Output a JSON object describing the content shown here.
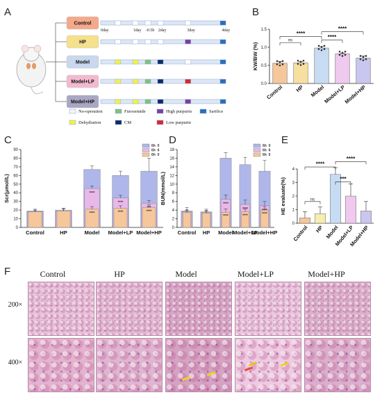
{
  "panels": {
    "a": "A",
    "b": "B",
    "c": "C",
    "d": "D",
    "e": "E",
    "f": "F"
  },
  "colors": {
    "control": "#f3a98a",
    "hp": "#f5e08c",
    "model": "#c9d7ef",
    "lp": "#f2b9cf",
    "mhp": "#a9a7c4",
    "noop": "#f0f4fb",
    "furosemide": "#7fc27d",
    "highpurpurin": "#7a3fa0",
    "sarifice": "#2a6fba",
    "dehydration": "#f2f24a",
    "cm": "#0f2a6b",
    "lowpurpurin": "#d8262c",
    "barB": "#f6c79b",
    "barC1": "#aeb6ea",
    "barC2": "#e8b8e8",
    "barC3": "#f6c79b",
    "barE": [
      "#f6c79b",
      "#f6edb0",
      "#c7dcf3",
      "#f0c9ee",
      "#c9c6ef"
    ]
  },
  "schema": {
    "groups": [
      "Control",
      "HP",
      "Model",
      "Model+LP",
      "Model+HP"
    ],
    "days": [
      "0day",
      "1day",
      "-0.5h",
      "2day",
      "3day",
      "4day"
    ],
    "legend": [
      {
        "name": "No-operation",
        "color_key": "noop"
      },
      {
        "name": "Furosemide",
        "color_key": "furosemide"
      },
      {
        "name": "High purpurin",
        "color_key": "highpurpurin"
      },
      {
        "name": "Sarifice",
        "color_key": "sarifice"
      },
      {
        "name": "Dehydration",
        "color_key": "dehydration"
      },
      {
        "name": "CM",
        "color_key": "cm"
      },
      {
        "name": "Low purpurin",
        "color_key": "lowpurpurin"
      }
    ],
    "tracks": [
      [
        "noop",
        "noop",
        "noop",
        "noop",
        "noop",
        "sarifice"
      ],
      [
        "noop",
        "noop",
        "noop",
        "noop",
        "highpurpurin",
        "sarifice"
      ],
      [
        "dehydration",
        "dehydration",
        "furosemide",
        "cm",
        "noop",
        "sarifice"
      ],
      [
        "dehydration",
        "dehydration",
        "furosemide",
        "cm",
        "lowpurpurin",
        "sarifice"
      ],
      [
        "dehydration",
        "dehydration",
        "furosemide",
        "cm",
        "highpurpurin",
        "sarifice"
      ]
    ]
  },
  "chart_data": [
    {
      "panel": "B",
      "type": "bar",
      "categories": [
        "Control",
        "HP",
        "Model",
        "Model+LP",
        "Model+HP"
      ],
      "values": [
        0.56,
        0.57,
        0.98,
        0.82,
        0.7
      ],
      "errors": [
        0.05,
        0.04,
        0.04,
        0.02,
        0.06
      ],
      "ylabel": "KW/BW (%)",
      "ylim": [
        0,
        1.5
      ],
      "yticks": [
        "0.0",
        "0.5",
        "1.0",
        "1.5"
      ],
      "significance": [
        {
          "from": 0,
          "to": 1,
          "label": "ns"
        },
        {
          "from": 0,
          "to": 2,
          "label": "****"
        },
        {
          "from": 2,
          "to": 3,
          "label": "****"
        },
        {
          "from": 2,
          "to": 4,
          "label": "****"
        }
      ]
    },
    {
      "panel": "C",
      "type": "bar",
      "categories": [
        "Control",
        "HP",
        "Model",
        "Model+LP",
        "Model+HP"
      ],
      "ylabel": "Scr(μmol/L)",
      "ylim": [
        0,
        90
      ],
      "yticks": [
        "0",
        "10",
        "20",
        "30",
        "40",
        "50",
        "60",
        "70",
        "80",
        "90"
      ],
      "legend": [
        "6h  0",
        "6h  6",
        "6h  0"
      ],
      "series": [
        {
          "name": "6h 0",
          "values": [
            19,
            20,
            67,
            60,
            65
          ],
          "errors": [
            2,
            2,
            4,
            5,
            15
          ]
        },
        {
          "name": "6h 6",
          "values": [
            18,
            19,
            45,
            34,
            28
          ],
          "errors": [
            2,
            2,
            3,
            3,
            3
          ]
        },
        {
          "name": "6h 0",
          "values": [
            18,
            19,
            21,
            22,
            23
          ],
          "errors": [
            2,
            3,
            3,
            3,
            3
          ]
        }
      ],
      "stars": [
        [
          "",
          ""
        ],
        [
          "",
          ""
        ],
        [
          "****",
          "****"
        ],
        [
          "****",
          "****"
        ],
        [
          "***",
          "****"
        ]
      ]
    },
    {
      "panel": "D",
      "type": "bar",
      "categories": [
        "Control",
        "HP",
        "Model",
        "Model+LP",
        "Model+HP"
      ],
      "ylabel": "BUN(mmol/L)",
      "ylim": [
        0,
        18
      ],
      "yticks": [
        "0",
        "2",
        "4",
        "6",
        "8",
        "10",
        "12",
        "14",
        "16",
        "18"
      ],
      "legend": [
        "6h  0",
        "6h  6",
        "6h  0"
      ],
      "series": [
        {
          "name": "6h 0",
          "values": [
            3.8,
            3.6,
            16,
            14.5,
            13
          ],
          "errors": [
            0.8,
            0.6,
            1.3,
            1.7,
            2.5
          ]
        },
        {
          "name": "6h 6",
          "values": [
            3.6,
            3.4,
            6.5,
            5.3,
            5.0
          ],
          "errors": [
            0.5,
            0.5,
            1.0,
            1.0,
            1.0
          ]
        },
        {
          "name": "6h 0",
          "values": [
            3.4,
            3.3,
            3.5,
            3.6,
            4.0
          ],
          "errors": [
            0.5,
            0.5,
            0.8,
            0.6,
            0.8
          ]
        }
      ],
      "stars": [
        [
          "",
          ""
        ],
        [
          "",
          ""
        ],
        [
          "****",
          "****"
        ],
        [
          "****",
          "****"
        ],
        [
          "****",
          "****"
        ]
      ]
    },
    {
      "panel": "E",
      "type": "bar",
      "categories": [
        "Control",
        "HP",
        "Model",
        "Model+LP",
        "Model+HP"
      ],
      "values": [
        0.4,
        0.7,
        3.6,
        2.0,
        0.9
      ],
      "errors": [
        0.45,
        0.5,
        0.5,
        0.9,
        0.7
      ],
      "ylabel": "HE evaluate(%)",
      "ylim": [
        0,
        4
      ],
      "yticks": [
        "0",
        "1",
        "2",
        "3",
        "4"
      ],
      "significance": [
        {
          "from": 0,
          "to": 1,
          "label": "ns"
        },
        {
          "from": 0,
          "to": 2,
          "label": "****"
        },
        {
          "from": 2,
          "to": 3,
          "label": "***"
        },
        {
          "from": 2,
          "to": 4,
          "label": "****"
        }
      ]
    }
  ],
  "histology": {
    "columns": [
      "Control",
      "HP",
      "Model",
      "Model+LP",
      "Model+HP"
    ],
    "rows": [
      "200×",
      "400×"
    ]
  }
}
